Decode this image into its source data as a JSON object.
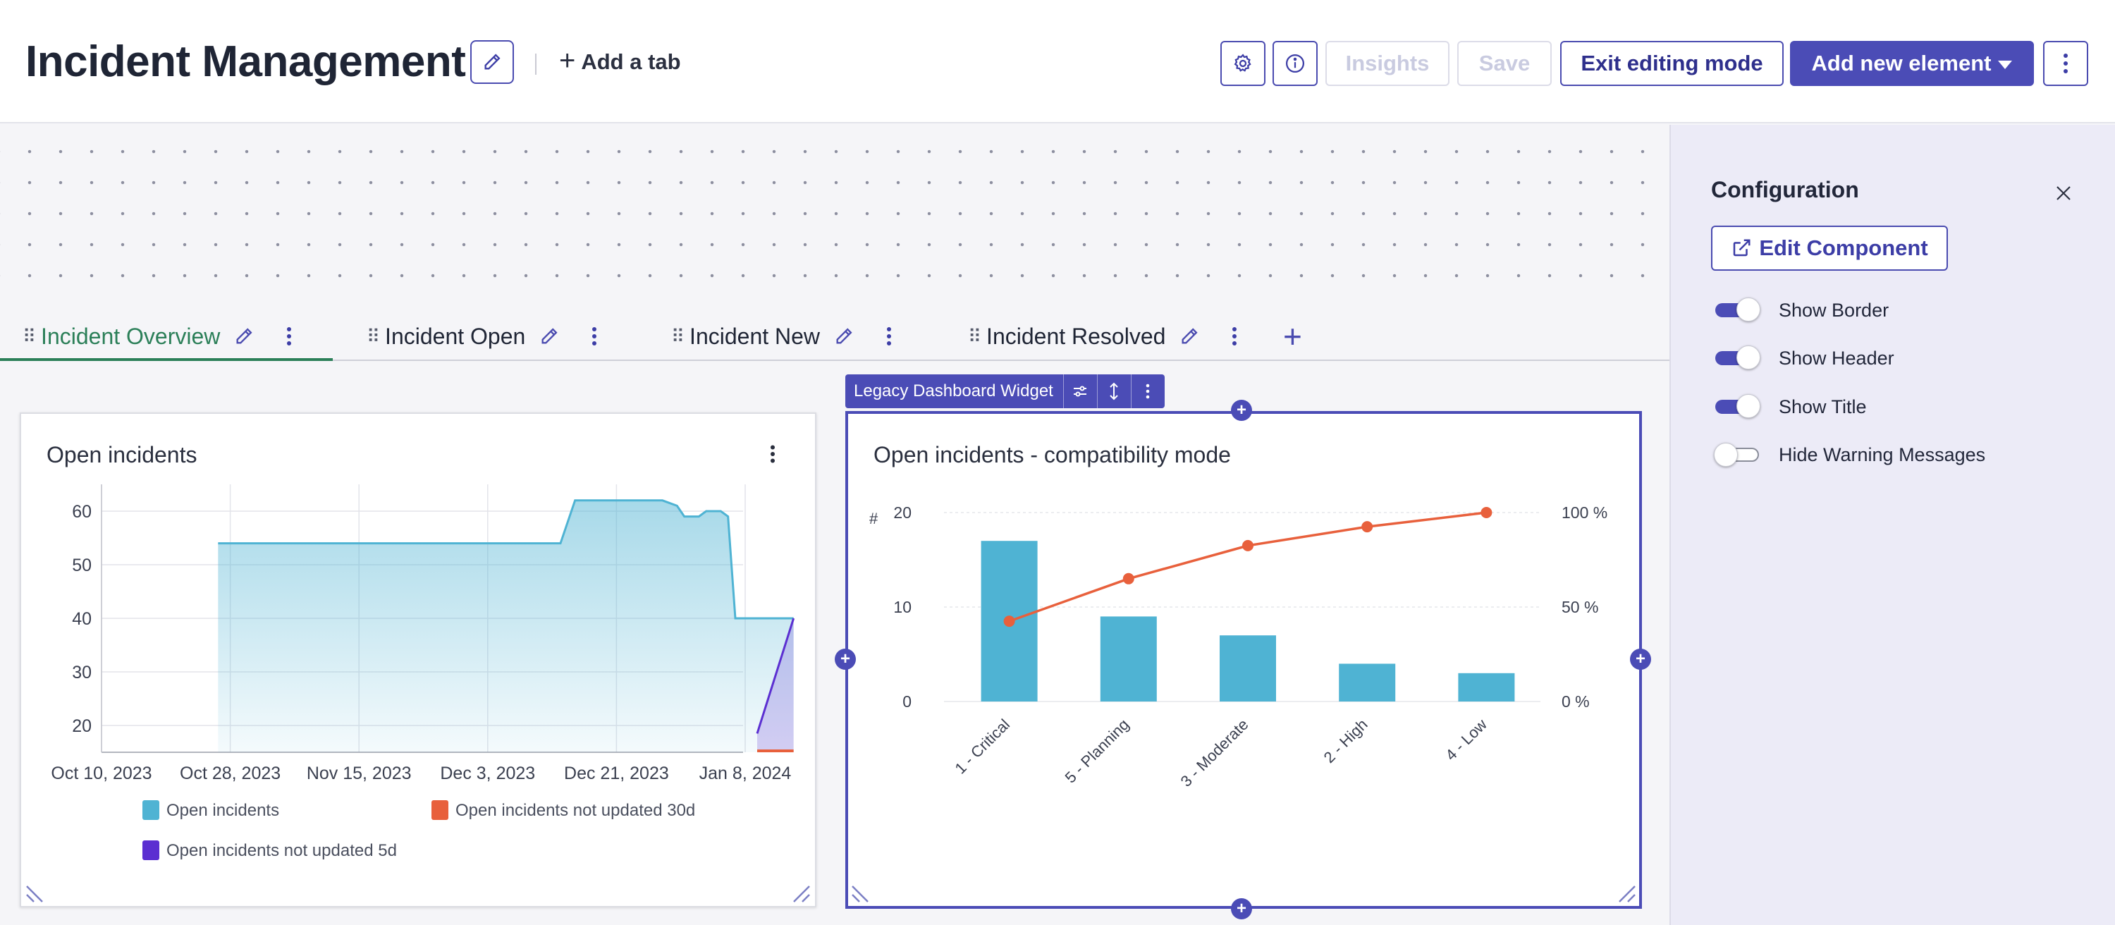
{
  "header": {
    "title": "Incident Management",
    "add_tab_label": "Add a tab",
    "buttons": {
      "insights": "Insights",
      "save": "Save",
      "exit_editing": "Exit editing mode",
      "add_new_element": "Add new element"
    },
    "icons": [
      "pencil-icon",
      "gear-icon",
      "info-icon",
      "kebab-icon",
      "chevron-down-icon"
    ]
  },
  "tabs": [
    {
      "label": "Incident Overview",
      "active": true
    },
    {
      "label": "Incident Open",
      "active": false
    },
    {
      "label": "Incident New",
      "active": false
    },
    {
      "label": "Incident Resolved",
      "active": false
    }
  ],
  "colors": {
    "accent": "#4b4cb6",
    "active_tab": "#2b7f58",
    "series_open": "#4fb3d3",
    "series_30d": "#e8603c",
    "series_5d": "#5b2fd1"
  },
  "widget_toolbar": {
    "label": "Legacy Dashboard Widget"
  },
  "widgets": {
    "left": {
      "title": "Open incidents"
    },
    "right": {
      "title": "Open incidents - compatibility mode"
    }
  },
  "chart_data": [
    {
      "type": "area",
      "title": "Open incidents",
      "x_ticks": [
        "Oct 10, 2023",
        "Oct 28, 2023",
        "Nov 15, 2023",
        "Dec 3, 2023",
        "Dec 21, 2023",
        "Jan 8, 2024"
      ],
      "y_ticks": [
        20,
        30,
        40,
        50,
        60
      ],
      "ylim": [
        15,
        62
      ],
      "grid": true,
      "legend_position": "bottom",
      "series": [
        {
          "name": "Open incidents",
          "points": [
            [
              "2023-10-26",
              54
            ],
            [
              "2023-12-12",
              54
            ],
            [
              "2023-12-14",
              62
            ],
            [
              "2023-12-26",
              62
            ],
            [
              "2023-12-28",
              61
            ],
            [
              "2023-12-29",
              59
            ],
            [
              "2023-12-31",
              59
            ],
            [
              "2024-01-01",
              60
            ],
            [
              "2024-01-03",
              60
            ],
            [
              "2024-01-04",
              59
            ],
            [
              "2024-01-05",
              40
            ],
            [
              "2024-01-13",
              40
            ]
          ]
        },
        {
          "name": "Open incidents not updated 30d",
          "points": [
            [
              "2024-01-08",
              15
            ],
            [
              "2024-01-13",
              15
            ]
          ]
        },
        {
          "name": "Open incidents not updated 5d",
          "points": [
            [
              "2024-01-08",
              18.5
            ],
            [
              "2024-01-13",
              40
            ]
          ]
        }
      ]
    },
    {
      "type": "bar",
      "title": "Open incidents - compatibility mode",
      "categories": [
        "1 - Critical",
        "5 - Planning",
        "3 - Moderate",
        "2 - High",
        "4 - Low"
      ],
      "values": [
        17,
        9,
        7,
        4,
        3
      ],
      "cumulative_percent": [
        42.5,
        65,
        82.5,
        92.5,
        100
      ],
      "y_ticks": [
        0,
        10,
        20
      ],
      "y2_ticks": [
        "0 %",
        "50 %",
        "100 %"
      ],
      "ylabel": "#",
      "ylim": [
        0,
        20
      ],
      "y2lim": [
        0,
        100
      ]
    }
  ],
  "config_panel": {
    "title": "Configuration",
    "edit_component_label": "Edit Component",
    "toggles": [
      {
        "label": "Show Border",
        "on": true
      },
      {
        "label": "Show Header",
        "on": true
      },
      {
        "label": "Show Title",
        "on": true
      },
      {
        "label": "Hide Warning Messages",
        "on": false
      }
    ]
  }
}
